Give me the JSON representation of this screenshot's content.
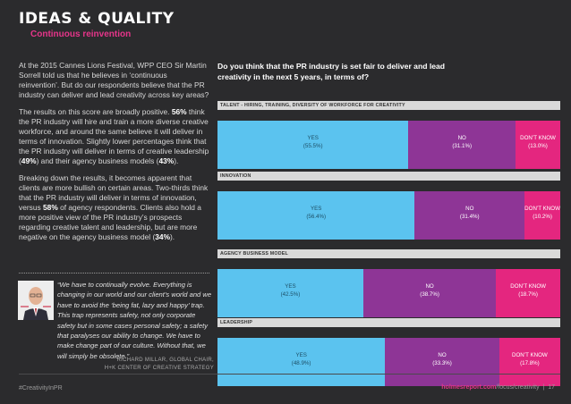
{
  "header": {
    "title": "IDEAS & QUALITY",
    "subtitle": "Continuous reinvention"
  },
  "body": {
    "p1": "At the 2015 Cannes Lions Festival, WPP CEO Sir Martin Sorrell told us that he believes in ‘continuous reinvention’. But do our respondents believe that the PR industry can deliver and lead creativity across key areas?",
    "p2": [
      "The results on this score are broadly positive. ",
      "56%",
      " think the PR industry will hire and train a more diverse creative workforce, and around the same believe it will deliver in terms of innovation. Slightly lower percentages think that the PR industry will deliver in terms of creative leadership (",
      "49%",
      ") and their agency business models (",
      "43%",
      ")."
    ],
    "p3": [
      "Breaking down the results, it becomes apparent that clients are more bullish on certain areas. Two-thirds think that the PR industry will deliver in terms of innovation, versus ",
      "58%",
      " of agency respondents. Clients also hold a more positive view of the PR industry’s prospects regarding creative talent and leadership, but are more negative on the agency business model (",
      "34%",
      ")."
    ]
  },
  "quote": {
    "text": "“We have to continually evolve. Everything is changing in our world and our client’s world and we have to avoid the ‘being fat, lazy and happy’ trap. This trap represents safety, not only corporate safety but in some cases personal safety; a safety that paralyses our ability to change. We have to make change part of our culture. Without that, we will simply be obsolete.”",
    "name": "RICHARD MILLAR, GLOBAL CHAIR,",
    "role": "H+K CENTER OF CREATIVE STRATEGY"
  },
  "question": "Do you think that the PR industry is set fair to deliver and lead creativity in the next 5 years, in terms of?",
  "chart_data": {
    "type": "bar",
    "categories": [
      "YES",
      "NO",
      "DON’T KNOW"
    ],
    "colors": [
      "#5bc3ef",
      "#8e3596",
      "#e4267f"
    ],
    "panels": [
      {
        "label": "TALENT - HIRING, TRAINING, DIVERSITY OF WORKFORCE FOR CREATIVITY",
        "values": [
          55.5,
          31.1,
          13.0
        ],
        "texts": [
          "(55.5%)",
          "(31.1%)",
          "(13.0%)"
        ]
      },
      {
        "label": "INNOVATION",
        "values": [
          56.4,
          31.4,
          10.2
        ],
        "texts": [
          "(56.4%)",
          "(31.4%)",
          "(10.2%)"
        ]
      },
      {
        "label": "AGENCY BUSINESS MODEL",
        "values": [
          42.5,
          38.7,
          18.7
        ],
        "texts": [
          "(42.5%)",
          "(38.7%)",
          "(18.7%)"
        ]
      },
      {
        "label": "LEADERSHIP",
        "values": [
          48.9,
          33.3,
          17.8
        ],
        "texts": [
          "(48.9%)",
          "(33.3%)",
          "(17.8%)"
        ]
      }
    ]
  },
  "footer": {
    "hashtag": "#CreativityInPR",
    "site_brand": "holmesreport.com",
    "site_path": "/focus/creativity",
    "sep": "|",
    "page": "17"
  }
}
